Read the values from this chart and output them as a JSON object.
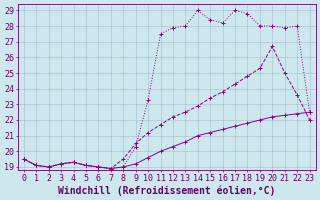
{
  "xlabel": "Windchill (Refroidissement éolien,°C)",
  "bg_color": "#cce8ee",
  "line_color": "#880088",
  "xlim": [
    -0.5,
    23.5
  ],
  "ylim": [
    18.8,
    29.4
  ],
  "yticks": [
    19,
    20,
    21,
    22,
    23,
    24,
    25,
    26,
    27,
    28,
    29
  ],
  "xticks": [
    0,
    1,
    2,
    3,
    4,
    5,
    6,
    7,
    8,
    9,
    10,
    11,
    12,
    13,
    14,
    15,
    16,
    17,
    18,
    19,
    20,
    21,
    22,
    23
  ],
  "line1_x": [
    0,
    1,
    2,
    3,
    4,
    5,
    6,
    7,
    8,
    9,
    10,
    11,
    12,
    13,
    14,
    15,
    16,
    17,
    18,
    19,
    20,
    21,
    22,
    23
  ],
  "line1_y": [
    19.5,
    19.1,
    19.0,
    19.2,
    19.3,
    19.1,
    19.0,
    18.9,
    19.0,
    20.3,
    23.3,
    27.5,
    27.9,
    28.0,
    29.0,
    28.4,
    28.2,
    29.0,
    28.8,
    28.0,
    28.0,
    27.9,
    28.0,
    22.5
  ],
  "line2_x": [
    0,
    1,
    2,
    3,
    4,
    5,
    6,
    7,
    8,
    9,
    10,
    11,
    12,
    13,
    14,
    15,
    16,
    17,
    18,
    19,
    20,
    21,
    22,
    23
  ],
  "line2_y": [
    19.5,
    19.1,
    19.0,
    19.2,
    19.3,
    19.1,
    19.0,
    18.9,
    19.5,
    20.5,
    21.2,
    21.7,
    22.2,
    22.5,
    22.9,
    23.4,
    23.8,
    24.3,
    24.8,
    25.3,
    26.7,
    25.0,
    23.6,
    22.0
  ],
  "line3_x": [
    0,
    1,
    2,
    3,
    4,
    5,
    6,
    7,
    8,
    9,
    10,
    11,
    12,
    13,
    14,
    15,
    16,
    17,
    18,
    19,
    20,
    21,
    22,
    23
  ],
  "line3_y": [
    19.5,
    19.1,
    19.0,
    19.2,
    19.3,
    19.1,
    19.0,
    18.9,
    19.0,
    19.2,
    19.6,
    20.0,
    20.3,
    20.6,
    21.0,
    21.2,
    21.4,
    21.6,
    21.8,
    22.0,
    22.2,
    22.3,
    22.4,
    22.5
  ],
  "font_color": "#660066",
  "grid_color": "#aabbcc",
  "xlabel_fontsize": 7.0,
  "tick_fontsize": 6.0
}
